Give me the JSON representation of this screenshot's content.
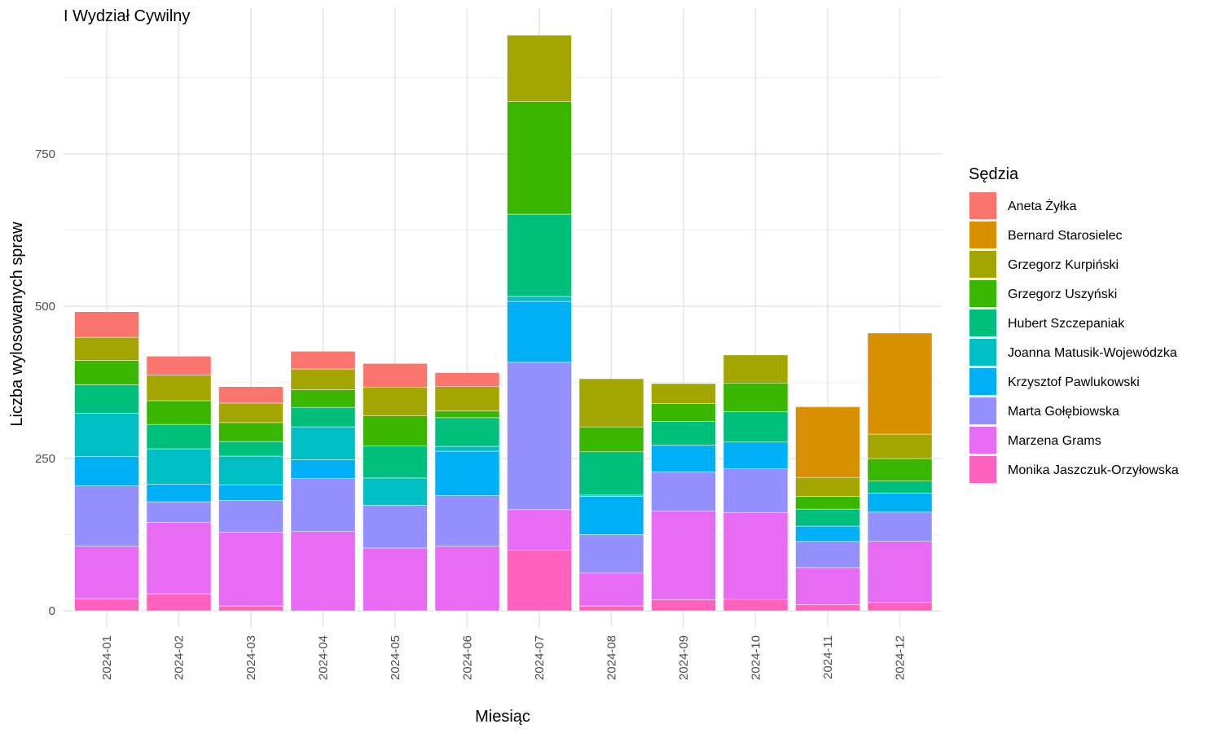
{
  "chart_data": {
    "type": "bar",
    "stacked": true,
    "title": "I Wydział Cywilny",
    "xlabel": "Miesiąc",
    "ylabel": "Liczba wylosowanych spraw",
    "ylim": [
      0,
      950
    ],
    "yticks": [
      0,
      250,
      500,
      750
    ],
    "grid": true,
    "legend_title": "Sędzia",
    "legend_position": "right",
    "categories": [
      "2024-01",
      "2024-02",
      "2024-03",
      "2024-04",
      "2024-05",
      "2024-06",
      "2024-07",
      "2024-08",
      "2024-09",
      "2024-10",
      "2024-11",
      "2024-12"
    ],
    "series": [
      {
        "name": "Aneta Żyłka",
        "color": "#F8766D",
        "values": [
          42,
          31,
          27,
          29,
          39,
          23,
          0,
          0,
          0,
          0,
          0,
          0
        ]
      },
      {
        "name": "Bernard Starosielec",
        "color": "#D89000",
        "values": [
          0,
          0,
          0,
          0,
          0,
          0,
          0,
          0,
          0,
          0,
          116,
          166
        ]
      },
      {
        "name": "Grzegorz Kurpiński",
        "color": "#A3A500",
        "values": [
          38,
          42,
          32,
          34,
          47,
          40,
          109,
          79,
          33,
          46,
          31,
          40
        ]
      },
      {
        "name": "Grzegorz Uszyński",
        "color": "#39B600",
        "values": [
          40,
          39,
          31,
          29,
          49,
          11,
          185,
          41,
          29,
          47,
          21,
          37
        ]
      },
      {
        "name": "Hubert Szczepaniak",
        "color": "#00BF7D",
        "values": [
          47,
          40,
          24,
          32,
          53,
          47,
          135,
          71,
          39,
          50,
          28,
          20
        ]
      },
      {
        "name": "Joanna Matusik-Wojewódzka",
        "color": "#00BFC4",
        "values": [
          71,
          58,
          47,
          54,
          45,
          8,
          8,
          2,
          0,
          0,
          0,
          0
        ]
      },
      {
        "name": "Krzysztof Pawlukowski",
        "color": "#00B0F6",
        "values": [
          48,
          29,
          26,
          31,
          0,
          73,
          100,
          63,
          44,
          44,
          25,
          31
        ]
      },
      {
        "name": "Marta Gołębiowska",
        "color": "#9590FF",
        "values": [
          99,
          34,
          52,
          87,
          70,
          83,
          242,
          63,
          64,
          72,
          43,
          48
        ]
      },
      {
        "name": "Marzena Grams",
        "color": "#E76BF3",
        "values": [
          86,
          117,
          121,
          130,
          103,
          106,
          66,
          54,
          146,
          142,
          61,
          100
        ]
      },
      {
        "name": "Monika Jaszczuk-Orzyłowska",
        "color": "#FF62BC",
        "values": [
          20,
          28,
          8,
          0,
          0,
          0,
          100,
          8,
          18,
          19,
          10,
          14
        ]
      }
    ]
  }
}
